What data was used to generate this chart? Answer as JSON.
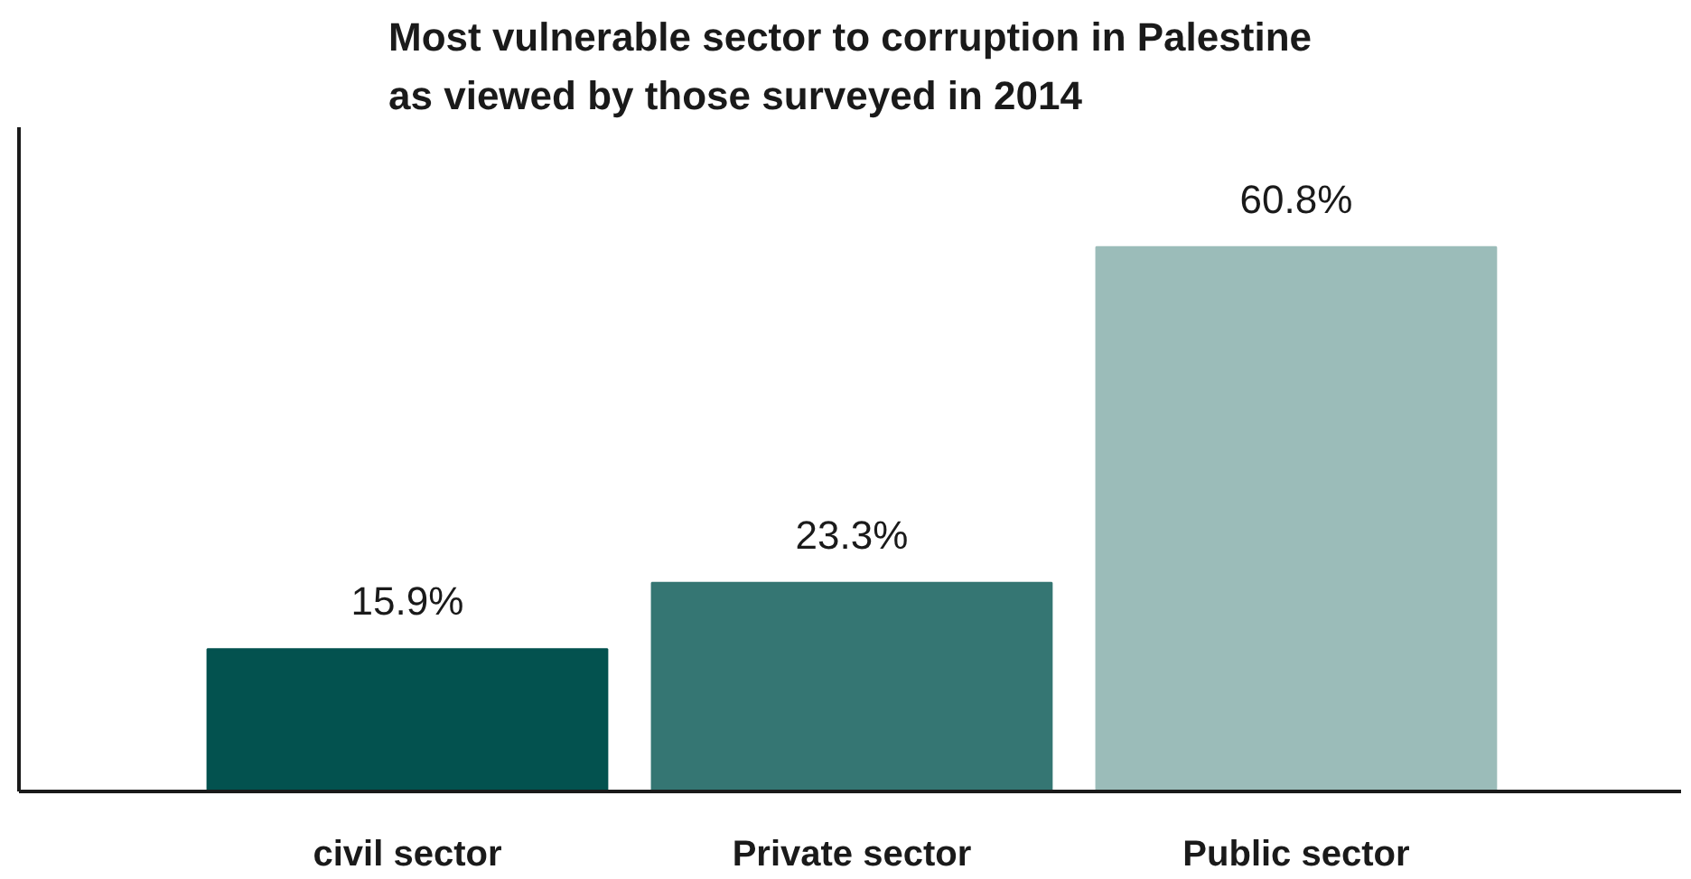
{
  "chart_data": {
    "type": "bar",
    "title": "Most vulnerable sector to corruption in Palestine as viewed by those surveyed in 2014",
    "categories": [
      "civil sector",
      "Private sector",
      "Public sector"
    ],
    "values": [
      15.9,
      23.3,
      60.8
    ],
    "colors": [
      "#03524f",
      "#357673",
      "#9bbcb9"
    ],
    "data_labels": true,
    "value_labels": [
      "15.9%",
      "23.3%",
      "60.8%"
    ],
    "tick_labels": "x",
    "grid": false
  }
}
